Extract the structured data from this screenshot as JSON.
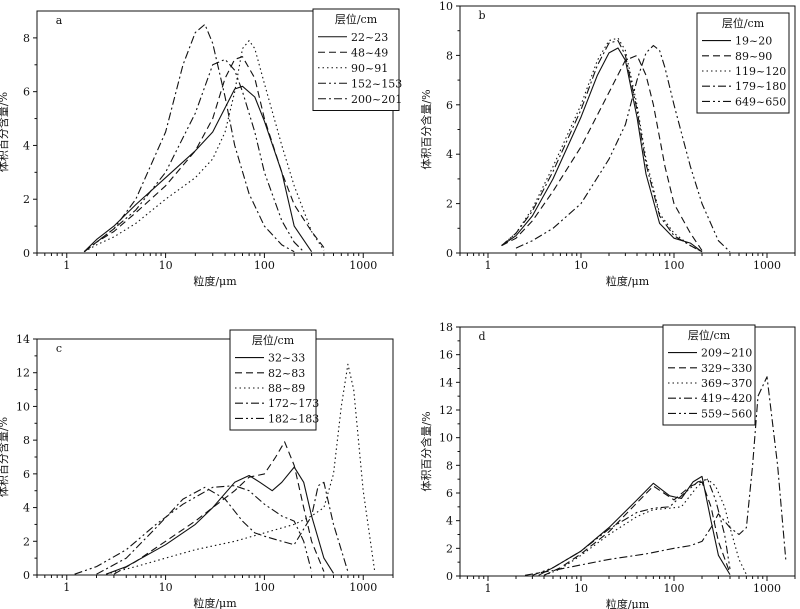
{
  "figure": {
    "panel_count": 4
  },
  "chart_data": [
    {
      "type": "line",
      "id": "a",
      "panel_label": "a",
      "xscale": "log",
      "xlim": [
        0.5,
        2000
      ],
      "ylim": [
        0,
        9
      ],
      "xticks": [
        1,
        10,
        100,
        1000
      ],
      "xtick_labels": [
        "1",
        "10",
        "100",
        "1000"
      ],
      "yticks": [
        0,
        2,
        4,
        6,
        8
      ],
      "ytick_labels": [
        "0",
        "2",
        "4",
        "6",
        "8"
      ],
      "xlabel": "粒度/μm",
      "ylabel": "体积百分含量/%",
      "legend_title": "层位/cm",
      "legend_position": "top-right",
      "series": [
        {
          "name": "22~23",
          "dash": "solid",
          "x": [
            1.5,
            2,
            3,
            5,
            10,
            20,
            30,
            40,
            50,
            60,
            80,
            100,
            150,
            200,
            300
          ],
          "y": [
            0.05,
            0.5,
            1.0,
            1.8,
            2.8,
            3.8,
            4.5,
            5.4,
            6.1,
            6.2,
            5.8,
            4.9,
            3.0,
            1.0,
            0.05
          ]
        },
        {
          "name": "48~49",
          "dash": "dash",
          "x": [
            1.5,
            2,
            3,
            5,
            10,
            20,
            30,
            40,
            50,
            60,
            80,
            100,
            150,
            200,
            300,
            400
          ],
          "y": [
            0.05,
            0.4,
            0.8,
            1.5,
            2.5,
            3.8,
            5.0,
            6.5,
            7.2,
            7.3,
            6.5,
            5.0,
            3.0,
            1.8,
            0.8,
            0.2
          ]
        },
        {
          "name": "90~91",
          "dash": "dot",
          "x": [
            1.5,
            2,
            3,
            5,
            10,
            20,
            30,
            40,
            50,
            60,
            70,
            80,
            100,
            150,
            200,
            300,
            400
          ],
          "y": [
            0.05,
            0.3,
            0.6,
            1.1,
            2.0,
            2.8,
            3.5,
            4.5,
            6.0,
            7.6,
            7.9,
            7.6,
            6.3,
            4.0,
            2.5,
            0.8,
            0.1
          ]
        },
        {
          "name": "152~153",
          "dash": "dashdotdot",
          "x": [
            1.5,
            2,
            3,
            5,
            10,
            20,
            30,
            40,
            50,
            60,
            80,
            100,
            150,
            200,
            250
          ],
          "y": [
            0.05,
            0.4,
            0.9,
            1.6,
            3.0,
            5.2,
            7.0,
            7.2,
            6.8,
            6.0,
            4.5,
            3.0,
            1.2,
            0.4,
            0.05
          ]
        },
        {
          "name": "200~201",
          "dash": "dashdot",
          "x": [
            1.5,
            2,
            3,
            5,
            10,
            15,
            20,
            25,
            30,
            40,
            50,
            70,
            100,
            150,
            200
          ],
          "y": [
            0.05,
            0.4,
            0.9,
            2.0,
            4.5,
            7.0,
            8.2,
            8.5,
            7.8,
            5.8,
            4.0,
            2.2,
            1.0,
            0.3,
            0.05
          ]
        }
      ]
    },
    {
      "type": "line",
      "id": "b",
      "panel_label": "b",
      "xscale": "log",
      "xlim": [
        0.5,
        2000
      ],
      "ylim": [
        0,
        10
      ],
      "xticks": [
        1,
        10,
        100,
        1000
      ],
      "xtick_labels": [
        "1",
        "10",
        "100",
        "1000"
      ],
      "yticks": [
        0,
        2,
        4,
        6,
        8,
        10
      ],
      "ytick_labels": [
        "0",
        "2",
        "4",
        "6",
        "8",
        "10"
      ],
      "xlabel": "粒度/μm",
      "ylabel": "体积百分含量/%",
      "legend_title": "层位/cm",
      "legend_position": "top-right",
      "series": [
        {
          "name": "19~20",
          "dash": "solid",
          "x": [
            1.4,
            2,
            3,
            5,
            10,
            15,
            20,
            25,
            30,
            40,
            50,
            70,
            100,
            150,
            200
          ],
          "y": [
            0.3,
            0.7,
            1.5,
            3.0,
            5.5,
            7.2,
            8.1,
            8.3,
            7.8,
            5.5,
            3.2,
            1.2,
            0.6,
            0.4,
            0.05
          ]
        },
        {
          "name": "89~90",
          "dash": "dash",
          "x": [
            1.4,
            2,
            3,
            5,
            10,
            20,
            30,
            40,
            50,
            60,
            80,
            100,
            150,
            200
          ],
          "y": [
            0.3,
            0.6,
            1.3,
            2.5,
            4.3,
            6.5,
            7.8,
            8.0,
            7.2,
            6.0,
            3.5,
            2.0,
            0.8,
            0.1
          ]
        },
        {
          "name": "119~120",
          "dash": "dot",
          "x": [
            1.4,
            2,
            3,
            5,
            10,
            15,
            20,
            25,
            30,
            40,
            50,
            70,
            100,
            150,
            200
          ],
          "y": [
            0.3,
            0.8,
            1.8,
            3.5,
            6.0,
            7.8,
            8.6,
            8.7,
            8.2,
            6.0,
            3.8,
            1.6,
            0.8,
            0.3,
            0.05
          ]
        },
        {
          "name": "179~180",
          "dash": "dashdot",
          "x": [
            1.4,
            2,
            3,
            5,
            10,
            15,
            20,
            25,
            30,
            40,
            50,
            70,
            100,
            150,
            200
          ],
          "y": [
            0.3,
            0.8,
            1.7,
            3.3,
            5.8,
            7.6,
            8.5,
            8.6,
            8.0,
            5.8,
            3.6,
            1.5,
            0.7,
            0.3,
            0.05
          ]
        },
        {
          "name": "649~650",
          "dash": "dashdotdot",
          "x": [
            2,
            3,
            5,
            10,
            20,
            30,
            40,
            50,
            60,
            70,
            80,
            100,
            150,
            200,
            300,
            400
          ],
          "y": [
            0.2,
            0.5,
            1.0,
            2.0,
            3.8,
            5.2,
            7.0,
            8.1,
            8.4,
            8.2,
            7.5,
            6.0,
            3.5,
            2.0,
            0.5,
            0.05
          ]
        }
      ]
    },
    {
      "type": "line",
      "id": "c",
      "panel_label": "c",
      "xscale": "log",
      "xlim": [
        0.5,
        2000
      ],
      "ylim": [
        0,
        14
      ],
      "xticks": [
        1,
        10,
        100,
        1000
      ],
      "xtick_labels": [
        "1",
        "10",
        "100",
        "1000"
      ],
      "yticks": [
        0,
        2,
        4,
        6,
        8,
        10,
        12,
        14
      ],
      "ytick_labels": [
        "0",
        "2",
        "4",
        "6",
        "8",
        "10",
        "12",
        "14"
      ],
      "xlabel": "粒度/μm",
      "ylabel": "体积百分含量/%",
      "legend_title": "层位/cm",
      "legend_position": "top-left",
      "series": [
        {
          "name": "32~33",
          "dash": "solid",
          "x": [
            2.5,
            4,
            10,
            20,
            30,
            50,
            70,
            90,
            120,
            150,
            200,
            250,
            300,
            400,
            500
          ],
          "y": [
            0.05,
            0.5,
            1.8,
            3.0,
            4.0,
            5.5,
            5.9,
            5.5,
            5.0,
            5.5,
            6.4,
            5.5,
            3.5,
            1.0,
            0.1
          ]
        },
        {
          "name": "82~83",
          "dash": "dash",
          "x": [
            3,
            5,
            10,
            20,
            30,
            50,
            70,
            100,
            130,
            160,
            200,
            250,
            300,
            400
          ],
          "y": [
            0.05,
            0.8,
            2.0,
            3.2,
            4.0,
            5.0,
            5.8,
            6.0,
            7.0,
            7.9,
            6.5,
            4.0,
            2.0,
            0.2
          ]
        },
        {
          "name": "88~89",
          "dash": "dot",
          "x": [
            2.5,
            5,
            10,
            20,
            50,
            100,
            200,
            300,
            400,
            500,
            600,
            700,
            800,
            1000,
            1300
          ],
          "y": [
            0.05,
            0.5,
            1.0,
            1.5,
            2.0,
            2.5,
            3.0,
            3.5,
            4.0,
            6.0,
            10.0,
            12.5,
            11.0,
            5.0,
            0.3
          ]
        },
        {
          "name": "172~173",
          "dash": "dashdot",
          "x": [
            2,
            4,
            8,
            15,
            25,
            40,
            60,
            80,
            100,
            150,
            200,
            300,
            350,
            400,
            500,
            700
          ],
          "y": [
            0.05,
            1.0,
            2.8,
            4.5,
            5.2,
            4.5,
            3.2,
            2.5,
            2.3,
            2.0,
            1.8,
            3.5,
            5.3,
            5.5,
            3.0,
            0.2
          ]
        },
        {
          "name": "182~183",
          "dash": "dashdotdot",
          "x": [
            1.2,
            2,
            4,
            8,
            15,
            30,
            50,
            70,
            100,
            150,
            200,
            250,
            300
          ],
          "y": [
            0.05,
            0.5,
            1.5,
            3.0,
            4.2,
            5.2,
            5.3,
            5.0,
            4.2,
            3.5,
            3.2,
            2.0,
            0.2
          ]
        }
      ]
    },
    {
      "type": "line",
      "id": "d",
      "panel_label": "d",
      "xscale": "log",
      "xlim": [
        0.5,
        2000
      ],
      "ylim": [
        0,
        18
      ],
      "xticks": [
        1,
        10,
        100,
        1000
      ],
      "xtick_labels": [
        "1",
        "10",
        "100",
        "1000"
      ],
      "yticks": [
        0,
        2,
        4,
        6,
        8,
        10,
        12,
        14,
        16,
        18
      ],
      "ytick_labels": [
        "0",
        "2",
        "4",
        "6",
        "8",
        "10",
        "12",
        "14",
        "16",
        "18"
      ],
      "xlabel": "粒度/μm",
      "ylabel": "体积百分含量/%",
      "legend_title": "层位/cm",
      "legend_position": "top-right",
      "series": [
        {
          "name": "209~210",
          "dash": "solid",
          "x": [
            3.5,
            5,
            10,
            20,
            40,
            60,
            90,
            120,
            160,
            200,
            250,
            300,
            400
          ],
          "y": [
            0.05,
            0.6,
            1.8,
            3.5,
            5.5,
            6.7,
            5.8,
            5.6,
            6.8,
            7.2,
            4.0,
            1.5,
            0.1
          ]
        },
        {
          "name": "329~330",
          "dash": "dash",
          "x": [
            4,
            6,
            10,
            20,
            40,
            60,
            100,
            150,
            200,
            250,
            300,
            400
          ],
          "y": [
            0.05,
            0.6,
            1.6,
            3.2,
            5.3,
            6.5,
            5.5,
            6.5,
            6.8,
            5.0,
            2.5,
            0.2
          ]
        },
        {
          "name": "369~370",
          "dash": "dot",
          "x": [
            4,
            6,
            10,
            20,
            40,
            60,
            90,
            120,
            180,
            230,
            280,
            350,
            400,
            500,
            600
          ],
          "y": [
            0.05,
            0.5,
            1.5,
            3.0,
            4.3,
            4.8,
            4.9,
            5.0,
            6.5,
            7.0,
            6.5,
            5.0,
            3.5,
            1.2,
            0.1
          ]
        },
        {
          "name": "419~420",
          "dash": "dashdot",
          "x": [
            2.5,
            5,
            10,
            20,
            50,
            100,
            150,
            200,
            250,
            300,
            400,
            500,
            600,
            700,
            800,
            1000,
            1300,
            1600
          ],
          "y": [
            0.05,
            0.4,
            0.8,
            1.2,
            1.6,
            2.0,
            2.2,
            2.5,
            3.5,
            4.5,
            3.5,
            3.0,
            3.5,
            8.0,
            13.0,
            14.4,
            8.0,
            1.0
          ]
        },
        {
          "name": "559~560",
          "dash": "dashdotdot",
          "x": [
            3,
            5,
            10,
            20,
            40,
            60,
            90,
            120,
            180,
            230,
            280,
            350,
            400
          ],
          "y": [
            0.05,
            0.6,
            1.8,
            3.4,
            4.6,
            4.9,
            5.0,
            5.8,
            6.8,
            7.0,
            5.5,
            3.0,
            0.5
          ]
        }
      ]
    }
  ]
}
